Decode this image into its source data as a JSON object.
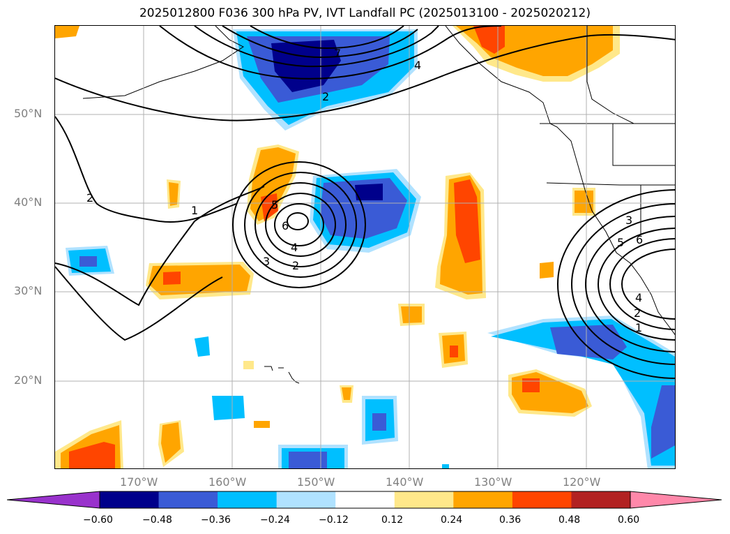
{
  "title": "2025012800 F036 300 hPa PV, IVT Landfall PC (2025013100 - 2025020212)",
  "latitude_labels": [
    "50°N",
    "40°N",
    "30°N",
    "20°N"
  ],
  "longitude_labels": [
    "170°W",
    "160°W",
    "150°W",
    "140°W",
    "130°W",
    "120°W"
  ],
  "contour_labels": [
    "7",
    "4",
    "2",
    "2",
    "1",
    "5",
    "6",
    "4",
    "3",
    "2",
    "3",
    "5",
    "6",
    "4",
    "2",
    "1"
  ],
  "colorbar": {
    "ticks": [
      "−0.60",
      "−0.48",
      "−0.36",
      "−0.24",
      "−0.12",
      "0.12",
      "0.24",
      "0.36",
      "0.48",
      "0.60"
    ],
    "colors": [
      "#9932cc",
      "#00008b",
      "#3a5bd6",
      "#00bfff",
      "#b0e2ff",
      "#ffffff",
      "#ffe88a",
      "#ffa500",
      "#ff4500",
      "#b22222",
      "#ff88aa"
    ]
  }
}
